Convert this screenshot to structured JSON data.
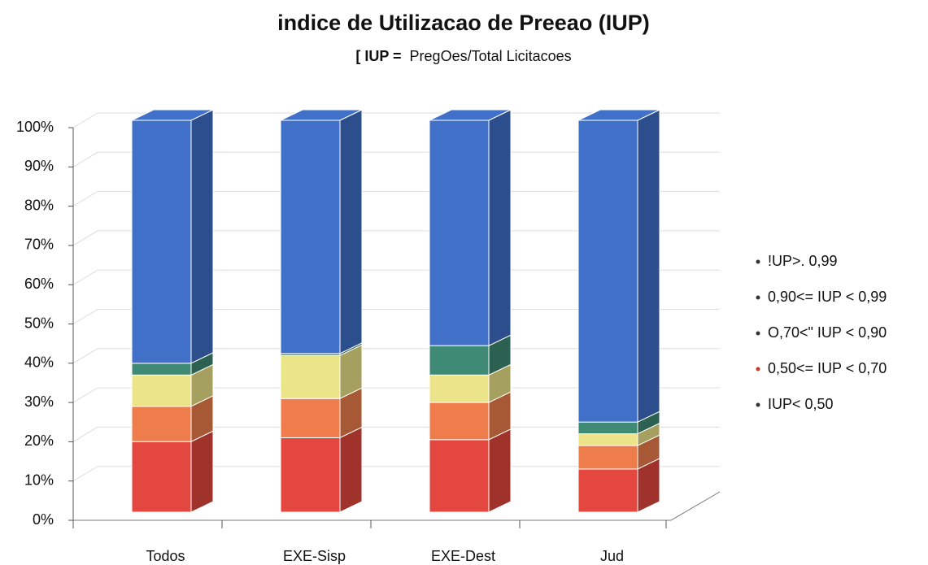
{
  "chart_data": {
    "type": "stacked-bar-3d",
    "title": "indice de Utilizacao de Preeao (IUP)",
    "subtitle": [
      "[ IUP =",
      "PregOes/Total Licitacoes"
    ],
    "categories": [
      "Todos",
      "EXE-Sisp",
      "EXE-Dest",
      "Jud"
    ],
    "series": [
      {
        "name": "IUP< 0,50",
        "color": "#e4473f",
        "values": [
          18,
          19,
          18.5,
          11
        ]
      },
      {
        "name": "0,50<= IUP < 0,70",
        "color": "#ef7d4b",
        "values": [
          9,
          10,
          9.5,
          6
        ]
      },
      {
        "name": "O,70<\" IUP < 0,90",
        "color": "#ece488",
        "values": [
          8,
          11,
          7,
          3
        ]
      },
      {
        "name": "0,90<= IUP < 0,99",
        "color": "#3f8a74",
        "values": [
          3,
          0.5,
          7.5,
          3
        ]
      },
      {
        "name": "!UP>. 0,99",
        "color": "#4070c8",
        "values": [
          62,
          59.5,
          57.5,
          77
        ]
      }
    ],
    "ylim": [
      0,
      100
    ],
    "yticks": [
      {
        "value": 0,
        "label": "0%"
      },
      {
        "value": 10,
        "label": "10%"
      },
      {
        "value": 20,
        "label": "20%"
      },
      {
        "value": 30,
        "label": "30%"
      },
      {
        "value": 40,
        "label": "40%"
      },
      {
        "value": 50,
        "label": "50%"
      },
      {
        "value": 60,
        "label": "60%"
      },
      {
        "value": 70,
        "label": "70%"
      },
      {
        "value": 80,
        "label": "80%"
      },
      {
        "value": 90,
        "label": "90%"
      },
      {
        "value": 100,
        "label": "100%"
      }
    ],
    "grid": true,
    "legend": "right"
  }
}
